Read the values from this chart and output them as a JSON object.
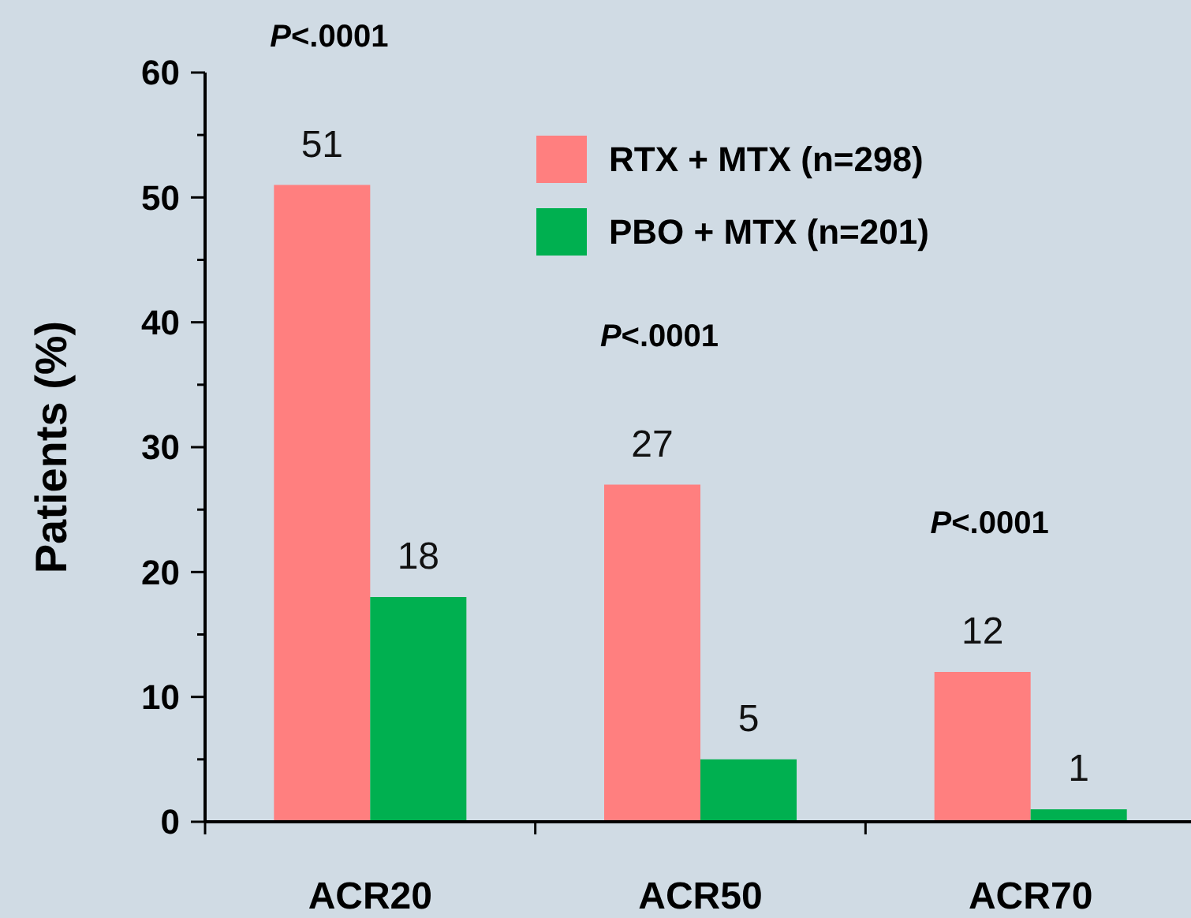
{
  "chart_data": {
    "type": "bar",
    "categories": [
      "ACR20",
      "ACR50",
      "ACR70"
    ],
    "series": [
      {
        "name": "RTX + MTX (n=298)",
        "color": "#ff7f7f",
        "values": [
          51,
          27,
          12
        ]
      },
      {
        "name": "PBO + MTX (n=201)",
        "color": "#00b050",
        "values": [
          18,
          5,
          1
        ]
      }
    ],
    "ylabel": "Patients (%)",
    "ylim": [
      0,
      60
    ],
    "yticks": [
      0,
      {
        "value": 5,
        "label": null
      },
      10,
      {
        "value": 15,
        "label": null
      },
      20,
      {
        "value": 25,
        "label": null
      },
      30,
      {
        "value": 35,
        "label": null
      },
      40,
      {
        "value": 45,
        "label": null
      },
      50,
      {
        "value": 55,
        "label": null
      },
      60
    ],
    "data_labels": true,
    "legend": "top right",
    "grid": false,
    "annotations": [
      "P<.0001",
      "P<.0001",
      "P<.0001"
    ]
  }
}
